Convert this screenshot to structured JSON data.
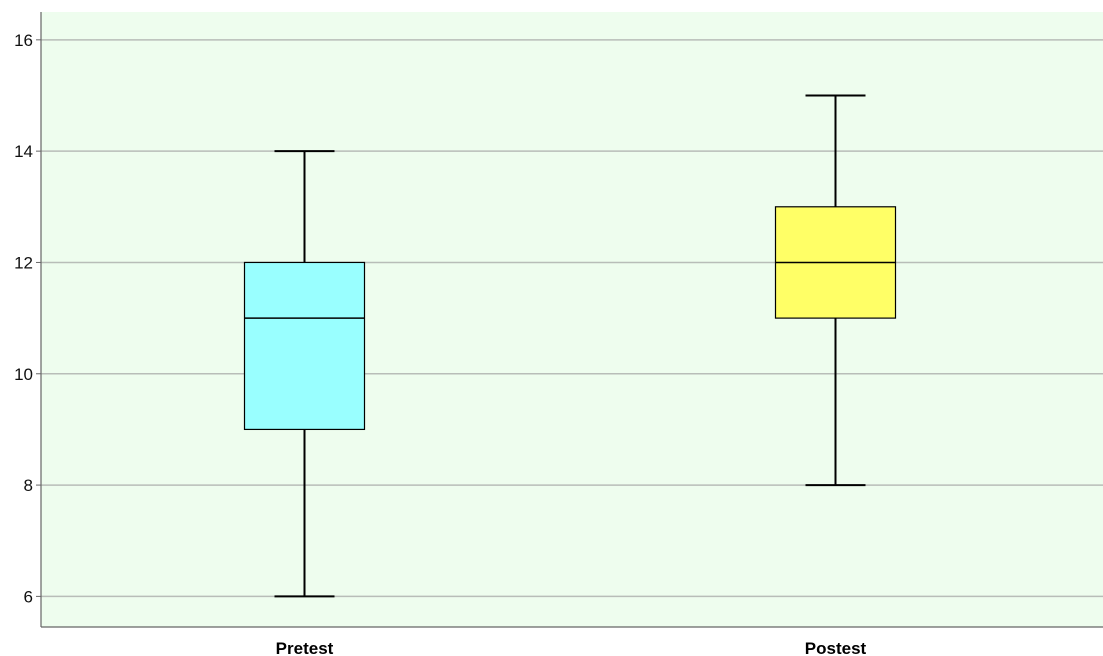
{
  "chart_data": {
    "type": "boxplot",
    "title": "",
    "xlabel": "",
    "ylabel": "",
    "ylim": [
      5.45,
      16.5
    ],
    "yticks": [
      6,
      8,
      10,
      12,
      14,
      16
    ],
    "ytick_labels": [
      "6",
      "8",
      "10",
      "12",
      "14",
      "16"
    ],
    "grid": true,
    "legend": "none",
    "categories": [
      "Pretest",
      "Postest"
    ],
    "boxes": [
      {
        "category": "Pretest",
        "min": 6,
        "q1": 9,
        "median": 11,
        "q3": 12,
        "max": 14,
        "color": "#99FFFF"
      },
      {
        "category": "Postest",
        "min": 8,
        "q1": 11,
        "median": 12,
        "q3": 13,
        "max": 15,
        "color": "#FFFF66"
      }
    ]
  },
  "colors": {
    "plot_background": "#EEFDEE",
    "gridline": "#B8BDB8",
    "axis": "#666666",
    "box_outline": "#000000"
  }
}
